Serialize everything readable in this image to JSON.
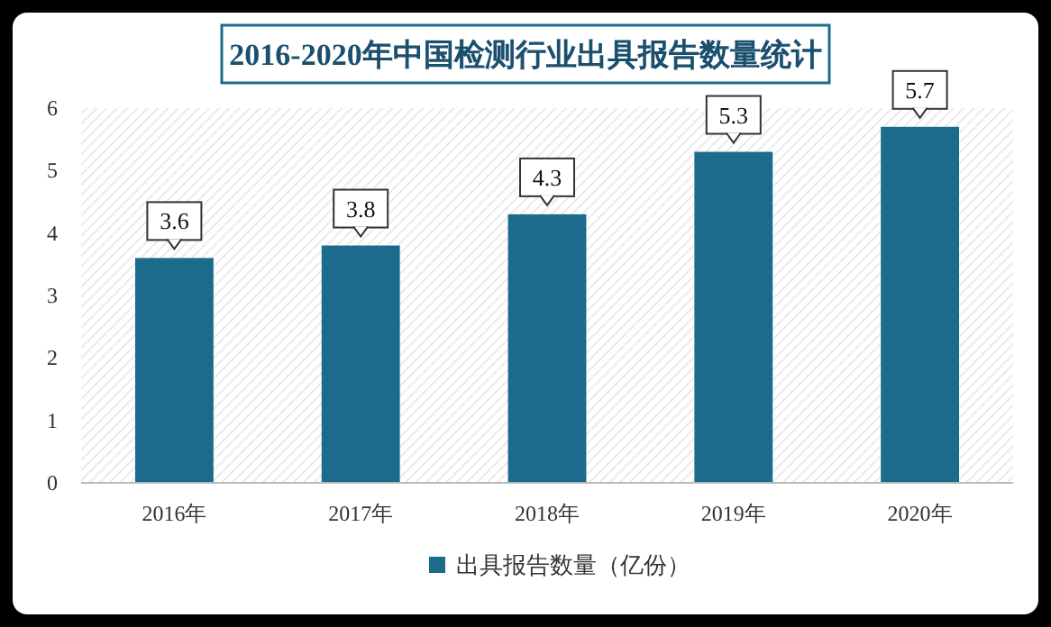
{
  "chart_data": {
    "type": "bar",
    "title": "2016-2020年中国检测行业出具报告数量统计",
    "categories": [
      "2016年",
      "2017年",
      "2018年",
      "2019年",
      "2020年"
    ],
    "series": [
      {
        "name": "出具报告数量（亿份）",
        "color": "#1c6b8c",
        "values": [
          3.6,
          3.8,
          4.3,
          5.3,
          5.7
        ]
      }
    ],
    "ylim": [
      0,
      6
    ],
    "yticks": [
      0,
      1,
      2,
      3,
      4,
      5,
      6
    ],
    "data_labels": true,
    "legend": "bottom"
  }
}
